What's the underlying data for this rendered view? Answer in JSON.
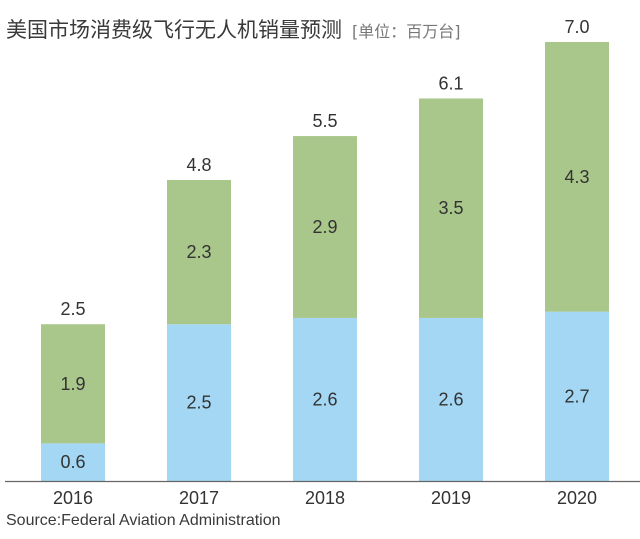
{
  "chart_data": {
    "type": "bar",
    "stacked": true,
    "title": "美国市场消费级飞行无人机销量预测",
    "unit": "[单位：百万台]",
    "categories": [
      "2016",
      "2017",
      "2018",
      "2019",
      "2020"
    ],
    "series": [
      {
        "values": [
          0.6,
          2.5,
          2.6,
          2.6,
          2.7
        ],
        "color": "#a3d7f3"
      },
      {
        "values": [
          1.9,
          2.3,
          2.9,
          3.5,
          4.3
        ],
        "color": "#a9c68b"
      }
    ],
    "totals": [
      "2.5",
      "4.8",
      "5.5",
      "6.1",
      "7.0"
    ],
    "ylim": [
      0,
      7.0
    ],
    "grid": false,
    "source": "Source:Federal Aviation Administration"
  }
}
